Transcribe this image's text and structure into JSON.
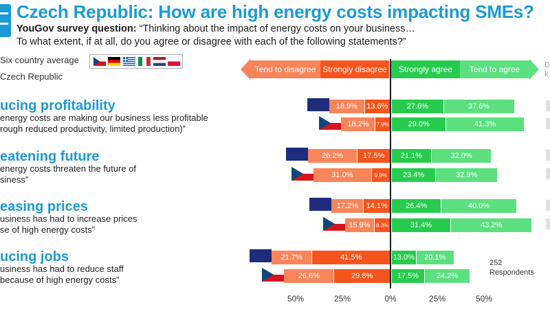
{
  "title": "Czech Republic: How are high energy costs impacting SMEs?",
  "question_label": "YouGov survey question:",
  "question_line1": "“Thinking about the impact of energy costs on your business…",
  "question_line2": "To what extent, if at all, do you agree or disagree with each of the following statements?”",
  "legend": {
    "avg_label": "Six country average",
    "cz_label": "Czech Republic"
  },
  "colors": {
    "tend_disagree": "#f8855a",
    "strongly_disagree": "#f5541c",
    "strongly_agree": "#27cc4e",
    "tend_agree": "#5ce07f",
    "header_tend_disagree": "#f8855a",
    "header_strongly_disagree": "#f5541c",
    "header_strongly_agree": "#27cc4e",
    "header_tend_agree": "#5ce07f",
    "avg_flag": "#1f2c7c",
    "title": "#1b9ad6"
  },
  "dk_label_line1": "D",
  "dk_label_line2": "k",
  "respondents_line1": "252",
  "respondents_line2": "Respondents",
  "chart_data": {
    "type": "bar",
    "orientation": "horizontal-diverging-stacked",
    "stack_labels": [
      "Tend to disagree",
      "Strongly disagree",
      "Strongly agree",
      "Tend to agree"
    ],
    "x_ticks": [
      "50%",
      "25%",
      "0%",
      "25%",
      "50%"
    ],
    "xlim": [
      -0.75,
      0.8
    ],
    "categories": [
      {
        "title": "ucing profitability",
        "desc_line1": "energy costs are making our business less profitable",
        "desc_line2": "rough reduced productivity, limited production)”",
        "rows": [
          {
            "group": "Six country average",
            "tend_disagree": 18.9,
            "strongly_disagree": 13.6,
            "strongly_agree": 27.6,
            "tend_agree": 37.6
          },
          {
            "group": "Czech Republic",
            "tend_disagree": 18.2,
            "strongly_disagree": 7.9,
            "strongly_agree": 29.0,
            "tend_agree": 41.3
          }
        ]
      },
      {
        "title": "eatening future",
        "desc_line1": "energy costs threaten the future of",
        "desc_line2": "siness”",
        "rows": [
          {
            "group": "Six country average",
            "tend_disagree": 26.2,
            "strongly_disagree": 17.5,
            "strongly_agree": 21.1,
            "tend_agree": 32.0
          },
          {
            "group": "Czech Republic",
            "tend_disagree": 31.0,
            "strongly_disagree": 9.9,
            "strongly_agree": 23.4,
            "tend_agree": 32.9
          }
        ]
      },
      {
        "title": "easing prices",
        "desc_line1": "usiness has had to increase prices",
        "desc_line2": "se of high energy costs”",
        "rows": [
          {
            "group": "Six country average",
            "tend_disagree": 17.2,
            "strongly_disagree": 14.1,
            "strongly_agree": 26.4,
            "tend_agree": 40.0
          },
          {
            "group": "Czech Republic",
            "tend_disagree": 15.9,
            "strongly_disagree": 8.3,
            "strongly_agree": 31.4,
            "tend_agree": 43.2
          }
        ]
      },
      {
        "title": "ucing jobs",
        "desc_line1": "usiness has had to reduce staff",
        "desc_line2": "because of high energy costs”",
        "rows": [
          {
            "group": "Six country average",
            "tend_disagree": 21.7,
            "strongly_disagree": 41.5,
            "strongly_agree": 13.0,
            "tend_agree": 20.1
          },
          {
            "group": "Czech Republic",
            "tend_disagree": 26.6,
            "strongly_disagree": 29.8,
            "strongly_agree": 17.5,
            "tend_agree": 24.2
          }
        ]
      }
    ]
  }
}
